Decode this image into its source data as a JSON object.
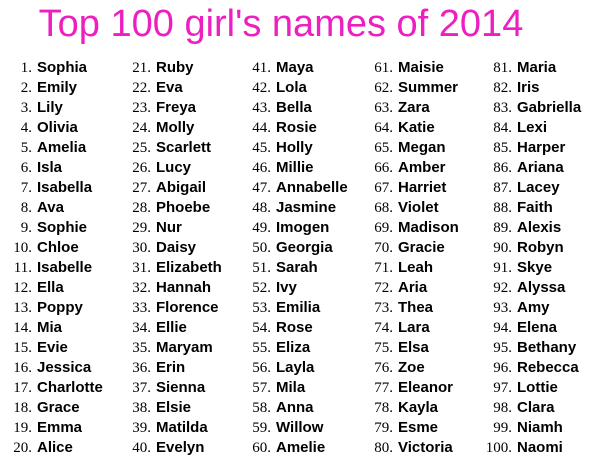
{
  "title": "Top 100 girl's names of 2014",
  "title_color": "#ee1fc0",
  "columns": [
    {
      "entries": [
        {
          "rank": "1.",
          "name": "Sophia"
        },
        {
          "rank": "2.",
          "name": "Emily"
        },
        {
          "rank": "3.",
          "name": "Lily"
        },
        {
          "rank": "4.",
          "name": "Olivia"
        },
        {
          "rank": "5.",
          "name": "Amelia"
        },
        {
          "rank": "6.",
          "name": "Isla"
        },
        {
          "rank": "7.",
          "name": "Isabella"
        },
        {
          "rank": "8.",
          "name": "Ava"
        },
        {
          "rank": "9.",
          "name": "Sophie"
        },
        {
          "rank": "10.",
          "name": "Chloe"
        },
        {
          "rank": "11.",
          "name": "Isabelle"
        },
        {
          "rank": "12.",
          "name": "Ella"
        },
        {
          "rank": "13.",
          "name": "Poppy"
        },
        {
          "rank": "14.",
          "name": "Mia"
        },
        {
          "rank": "15.",
          "name": "Evie"
        },
        {
          "rank": "16.",
          "name": "Jessica"
        },
        {
          "rank": "17.",
          "name": "Charlotte"
        },
        {
          "rank": "18.",
          "name": "Grace"
        },
        {
          "rank": "19.",
          "name": "Emma"
        },
        {
          "rank": "20.",
          "name": "Alice"
        }
      ]
    },
    {
      "entries": [
        {
          "rank": "21.",
          "name": "Ruby"
        },
        {
          "rank": "22.",
          "name": "Eva"
        },
        {
          "rank": "23.",
          "name": "Freya"
        },
        {
          "rank": "24.",
          "name": "Molly"
        },
        {
          "rank": "25.",
          "name": "Scarlett"
        },
        {
          "rank": "26.",
          "name": "Lucy"
        },
        {
          "rank": "27.",
          "name": "Abigail"
        },
        {
          "rank": "28.",
          "name": "Phoebe"
        },
        {
          "rank": "29.",
          "name": "Nur"
        },
        {
          "rank": "30.",
          "name": "Daisy"
        },
        {
          "rank": "31.",
          "name": "Elizabeth"
        },
        {
          "rank": "32.",
          "name": "Hannah"
        },
        {
          "rank": "33.",
          "name": "Florence"
        },
        {
          "rank": "34.",
          "name": "Ellie"
        },
        {
          "rank": "35.",
          "name": "Maryam"
        },
        {
          "rank": "36.",
          "name": "Erin"
        },
        {
          "rank": "37.",
          "name": "Sienna"
        },
        {
          "rank": "38.",
          "name": "Elsie"
        },
        {
          "rank": "39.",
          "name": "Matilda"
        },
        {
          "rank": "40.",
          "name": "Evelyn"
        }
      ]
    },
    {
      "entries": [
        {
          "rank": "41.",
          "name": "Maya"
        },
        {
          "rank": "42.",
          "name": "Lola"
        },
        {
          "rank": "43.",
          "name": "Bella"
        },
        {
          "rank": "44.",
          "name": "Rosie"
        },
        {
          "rank": "45.",
          "name": "Holly"
        },
        {
          "rank": "46.",
          "name": "Millie"
        },
        {
          "rank": "47.",
          "name": "Annabelle"
        },
        {
          "rank": "48.",
          "name": "Jasmine"
        },
        {
          "rank": "49.",
          "name": "Imogen"
        },
        {
          "rank": "50.",
          "name": "Georgia"
        },
        {
          "rank": "51.",
          "name": "Sarah"
        },
        {
          "rank": "52.",
          "name": "Ivy"
        },
        {
          "rank": "53.",
          "name": "Emilia"
        },
        {
          "rank": "54.",
          "name": "Rose"
        },
        {
          "rank": "55.",
          "name": "Eliza"
        },
        {
          "rank": "56.",
          "name": "Layla"
        },
        {
          "rank": "57.",
          "name": "Mila"
        },
        {
          "rank": "58.",
          "name": "Anna"
        },
        {
          "rank": "59.",
          "name": "Willow"
        },
        {
          "rank": "60.",
          "name": "Amelie"
        }
      ]
    },
    {
      "entries": [
        {
          "rank": "61.",
          "name": "Maisie"
        },
        {
          "rank": "62.",
          "name": "Summer"
        },
        {
          "rank": "63.",
          "name": "Zara"
        },
        {
          "rank": "64.",
          "name": "Katie"
        },
        {
          "rank": "65.",
          "name": "Megan"
        },
        {
          "rank": "66.",
          "name": "Amber"
        },
        {
          "rank": "67.",
          "name": "Harriet"
        },
        {
          "rank": "68.",
          "name": "Violet"
        },
        {
          "rank": "69.",
          "name": "Madison"
        },
        {
          "rank": "70.",
          "name": "Gracie"
        },
        {
          "rank": "71.",
          "name": "Leah"
        },
        {
          "rank": "72.",
          "name": "Aria"
        },
        {
          "rank": "73.",
          "name": "Thea"
        },
        {
          "rank": "74.",
          "name": "Lara"
        },
        {
          "rank": "75.",
          "name": "Elsa"
        },
        {
          "rank": "76.",
          "name": "Zoe"
        },
        {
          "rank": "77.",
          "name": "Eleanor"
        },
        {
          "rank": "78.",
          "name": "Kayla"
        },
        {
          "rank": "79.",
          "name": "Esme"
        },
        {
          "rank": "80.",
          "name": "Victoria"
        }
      ]
    },
    {
      "entries": [
        {
          "rank": "81.",
          "name": "Maria"
        },
        {
          "rank": "82.",
          "name": "Iris"
        },
        {
          "rank": "83.",
          "name": "Gabriella"
        },
        {
          "rank": "84.",
          "name": "Lexi"
        },
        {
          "rank": "85.",
          "name": "Harper"
        },
        {
          "rank": "86.",
          "name": "Ariana"
        },
        {
          "rank": "87.",
          "name": "Lacey"
        },
        {
          "rank": "88.",
          "name": "Faith"
        },
        {
          "rank": "89.",
          "name": "Alexis"
        },
        {
          "rank": "90.",
          "name": "Robyn"
        },
        {
          "rank": "91.",
          "name": "Skye"
        },
        {
          "rank": "92.",
          "name": "Alyssa"
        },
        {
          "rank": "93.",
          "name": "Amy"
        },
        {
          "rank": "94.",
          "name": "Elena"
        },
        {
          "rank": "95.",
          "name": "Bethany"
        },
        {
          "rank": "96.",
          "name": "Rebecca"
        },
        {
          "rank": "97.",
          "name": "Lottie"
        },
        {
          "rank": "98.",
          "name": "Clara"
        },
        {
          "rank": "99.",
          "name": "Niamh"
        },
        {
          "rank": "100.",
          "name": "Naomi"
        }
      ]
    }
  ]
}
